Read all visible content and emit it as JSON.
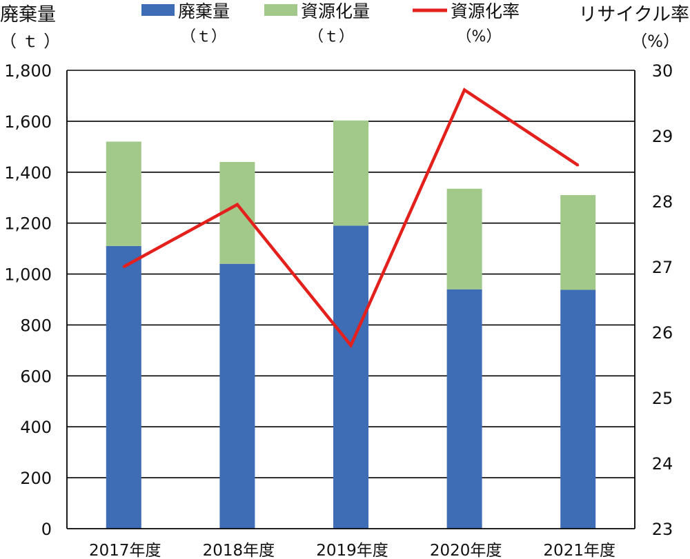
{
  "chart_data": {
    "type": "bar",
    "stacked": true,
    "categories": [
      "2017年度",
      "2018年度",
      "2019年度",
      "2020年度",
      "2021年度"
    ],
    "series": [
      {
        "name": "廃棄量",
        "unit": "（ｔ）",
        "type": "bar",
        "axis": "left",
        "color": "#3f6db5",
        "values": [
          1110,
          1040,
          1190,
          940,
          938
        ]
      },
      {
        "name": "資源化量",
        "unit": "（ｔ）",
        "type": "bar",
        "axis": "left",
        "color": "#a3c98a",
        "values": [
          410,
          400,
          413,
          395,
          372
        ]
      },
      {
        "name": "資源化率",
        "unit": "（%）",
        "type": "line",
        "axis": "right",
        "color": "#e3201c",
        "values": [
          27.0,
          27.95,
          25.8,
          29.7,
          28.55
        ]
      }
    ],
    "y_left": {
      "label": "廃棄量",
      "unit": "（ ｔ ）",
      "ylim": [
        0,
        1800
      ],
      "ticks": [
        "0",
        "200",
        "400",
        "600",
        "800",
        "1,000",
        "1,200",
        "1,400",
        "1,600",
        "1,800"
      ]
    },
    "y_right": {
      "label": "リサイクル率",
      "unit": "（%）",
      "ylim": [
        23,
        30
      ],
      "ticks": [
        "23",
        "24",
        "25",
        "26",
        "27",
        "28",
        "29",
        "30"
      ]
    },
    "grid": true,
    "legend_position": "top"
  }
}
